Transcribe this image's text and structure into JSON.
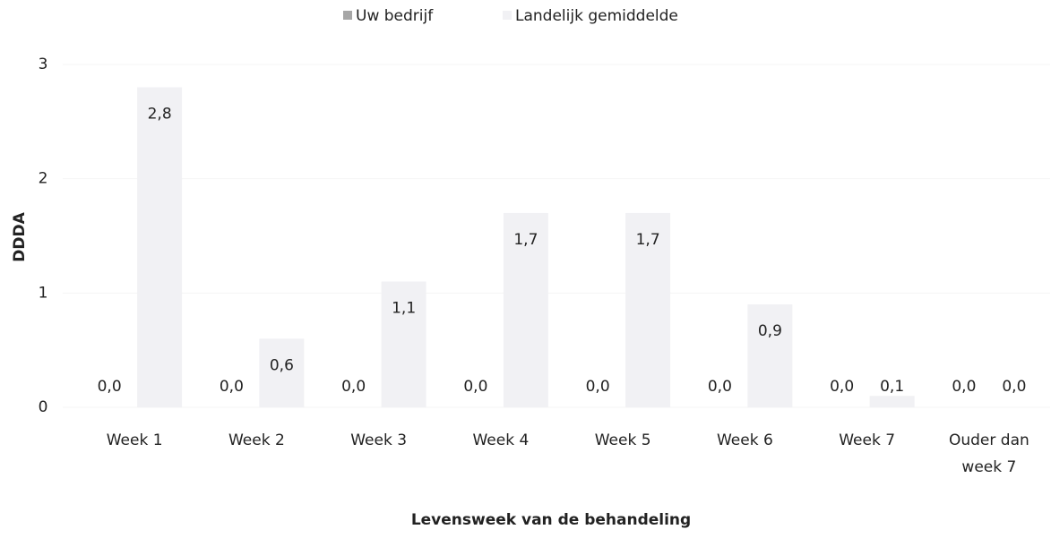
{
  "chart_data": {
    "type": "bar",
    "y_label": "DDDA",
    "x_label": "Levensweek van de behandeling",
    "categories": [
      "Week 1",
      "Week 2",
      "Week 3",
      "Week 4",
      "Week 5",
      "Week 6",
      "Week 7",
      "Ouder dan week 7"
    ],
    "series": [
      {
        "name": "Uw bedrijf",
        "color": "#a6a6a6",
        "values": [
          0,
          0,
          0,
          0,
          0,
          0,
          0,
          0
        ],
        "value_labels": [
          "0,0",
          "0,0",
          "0,0",
          "0,0",
          "0,0",
          "0,0",
          "0,0",
          "0,0"
        ]
      },
      {
        "name": "Landelijk gemiddelde",
        "color": "#f1f1f4",
        "values": [
          2.8,
          0.6,
          1.1,
          1.7,
          1.7,
          0.9,
          0.1,
          0
        ],
        "value_labels": [
          "2,8",
          "0,6",
          "1,1",
          "1,7",
          "1,7",
          "0,9",
          "0,1",
          "0,0"
        ]
      }
    ],
    "ylim": [
      0,
      3
    ],
    "yticks": [
      0,
      1,
      2,
      3
    ],
    "grid": true,
    "legend": "top"
  }
}
